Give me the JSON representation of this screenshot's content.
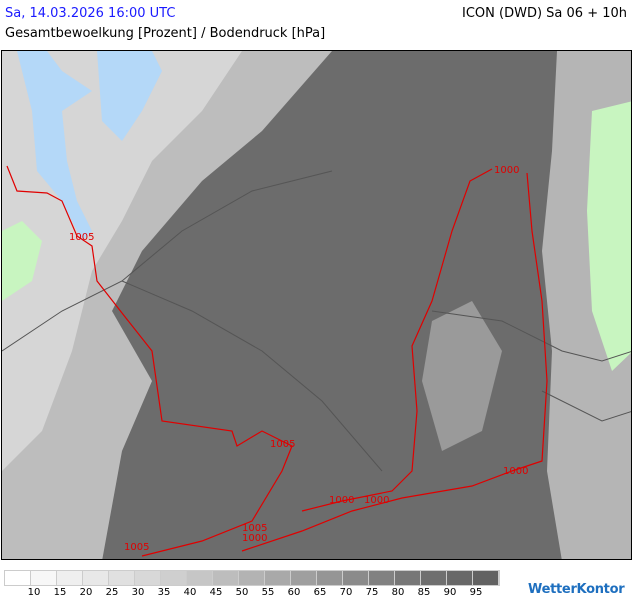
{
  "header": {
    "datetime": "Sa, 14.03.2026 16:00 UTC",
    "model": "ICON (DWD) Sa 06 + 10h",
    "parameter": "Gesamtbewoelkung [Prozent] / Bodendruck [hPa]"
  },
  "colors": {
    "datetime": "#1a1aff",
    "isobar": "#e00000",
    "water": "#b4d8f8",
    "land_clear": "#c8f5c0",
    "overcast": "#6c6c6c"
  },
  "isobar_labels": [
    "1005",
    "1000",
    "1005",
    "1000",
    "1000",
    "1000",
    "1005",
    "1000",
    "1005"
  ],
  "legend": {
    "colors": [
      "#ffffff",
      "#f7f7f7",
      "#efefef",
      "#e8e8e8",
      "#e0e0e0",
      "#d8d8d8",
      "#cfcfcf",
      "#c6c6c6",
      "#bdbdbd",
      "#b3b3b3",
      "#a9a9a9",
      "#9f9f9f",
      "#959595",
      "#8b8b8b",
      "#818181",
      "#777777",
      "#6f6f6f",
      "#686868",
      "#626262"
    ],
    "labels": [
      "10",
      "15",
      "20",
      "25",
      "30",
      "35",
      "40",
      "45",
      "50",
      "55",
      "60",
      "65",
      "70",
      "75",
      "80",
      "85",
      "90",
      "95"
    ]
  },
  "logo": "WetterKontor"
}
